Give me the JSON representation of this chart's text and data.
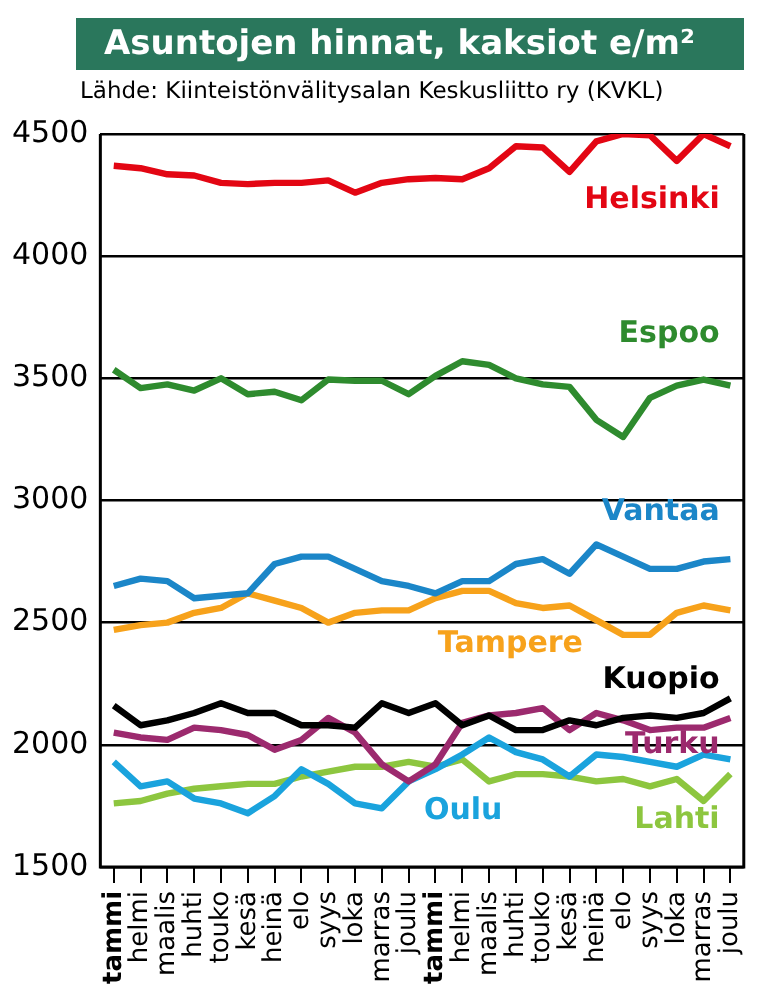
{
  "chart_data": {
    "type": "line",
    "title": "Asuntojen hinnat, kaksiot e/m²",
    "annotations": [
      "Lähde: Kiinteistönvälitysalan Keskusliitto ry (KVKL)"
    ],
    "categories": [
      "tammi",
      "helmi",
      "maalis",
      "huhti",
      "touko",
      "kesä",
      "heinä",
      "elo",
      "syys",
      "loka",
      "marras",
      "joulu",
      "tammi",
      "helmi",
      "maalis",
      "huhti",
      "touko",
      "kesä",
      "heinä",
      "elo",
      "syys",
      "loka",
      "marras",
      "joulu"
    ],
    "series": [
      {
        "name": "Helsinki",
        "color": "#e30613",
        "values": [
          4370,
          4360,
          4335,
          4330,
          4300,
          4295,
          4300,
          4300,
          4310,
          4260,
          4300,
          4315,
          4320,
          4315,
          4360,
          4450,
          4445,
          4345,
          4470,
          4500,
          4495,
          4390,
          4500,
          4450
        ]
      },
      {
        "name": "Espoo",
        "color": "#2e8b2e",
        "values": [
          3535,
          3460,
          3475,
          3450,
          3500,
          3435,
          3445,
          3410,
          3495,
          3490,
          3490,
          3435,
          3510,
          3570,
          3555,
          3500,
          3475,
          3465,
          3330,
          3260,
          3420,
          3470,
          3495,
          3470
        ]
      },
      {
        "name": "Vantaa",
        "color": "#1b86c8",
        "values": [
          2650,
          2680,
          2670,
          2600,
          2610,
          2620,
          2740,
          2770,
          2770,
          2720,
          2670,
          2650,
          2620,
          2670,
          2670,
          2740,
          2760,
          2700,
          2820,
          2770,
          2720,
          2720,
          2750,
          2760
        ]
      },
      {
        "name": "Tampere",
        "color": "#f7a21b",
        "values": [
          2470,
          2490,
          2500,
          2540,
          2560,
          2620,
          2590,
          2560,
          2500,
          2540,
          2550,
          2550,
          2600,
          2630,
          2630,
          2580,
          2560,
          2570,
          2510,
          2450,
          2450,
          2540,
          2570,
          2550
        ]
      },
      {
        "name": "Kuopio",
        "color": "#000000",
        "values": [
          2160,
          2080,
          2100,
          2130,
          2170,
          2130,
          2130,
          2080,
          2080,
          2070,
          2170,
          2130,
          2170,
          2080,
          2120,
          2060,
          2060,
          2100,
          2080,
          2110,
          2120,
          2110,
          2130,
          2190
        ]
      },
      {
        "name": "Turku",
        "color": "#9c2a6e",
        "values": [
          2050,
          2030,
          2020,
          2070,
          2060,
          2040,
          1980,
          2020,
          2110,
          2050,
          1920,
          1850,
          1920,
          2090,
          2120,
          2130,
          2150,
          2060,
          2130,
          2100,
          2060,
          2070,
          2070,
          2110
        ]
      },
      {
        "name": "Oulu",
        "color": "#1aa3dd",
        "values": [
          1930,
          1830,
          1850,
          1780,
          1760,
          1720,
          1790,
          1900,
          1840,
          1760,
          1740,
          1850,
          1900,
          1960,
          2030,
          1970,
          1940,
          1870,
          1960,
          1950,
          1930,
          1910,
          1960,
          1940
        ]
      },
      {
        "name": "Lahti",
        "color": "#8dc63f",
        "values": [
          1760,
          1770,
          1800,
          1820,
          1830,
          1840,
          1840,
          1870,
          1890,
          1910,
          1910,
          1930,
          1910,
          1940,
          1850,
          1880,
          1880,
          1870,
          1850,
          1860,
          1830,
          1860,
          1770,
          1880
        ]
      }
    ],
    "ylim": [
      1500,
      4500
    ],
    "yticks": [
      1500,
      2000,
      2500,
      3000,
      3500,
      4000,
      4500
    ],
    "grid": "y",
    "legend": false,
    "marker": "none",
    "line_style": "solid"
  }
}
